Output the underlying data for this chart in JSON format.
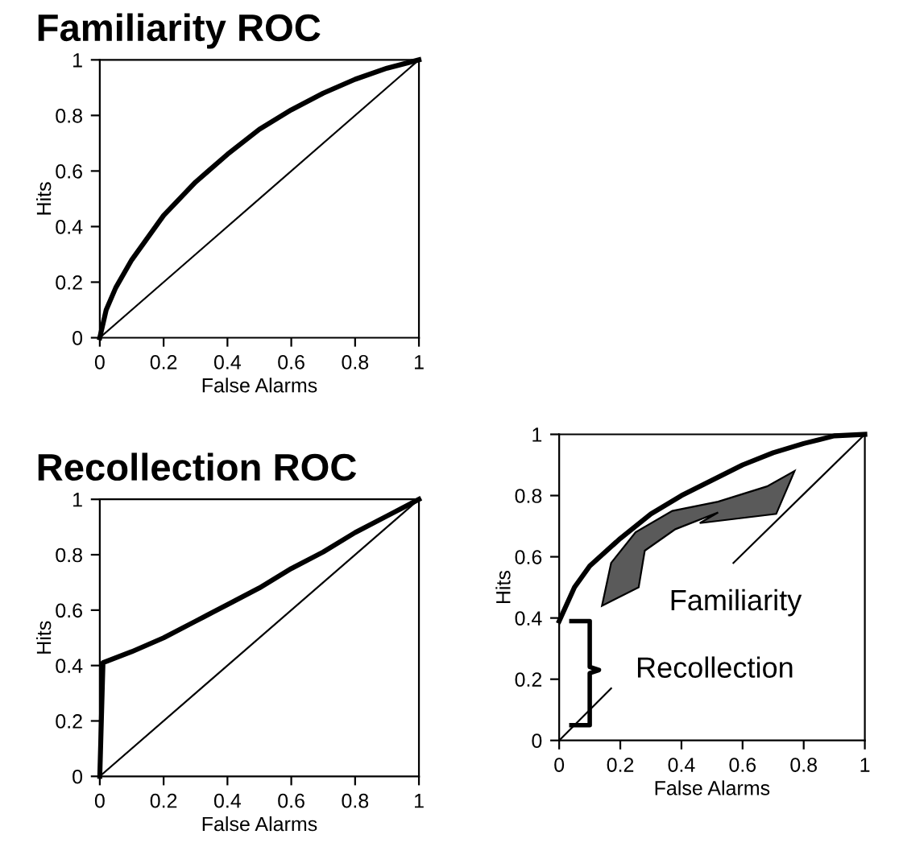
{
  "chart_data": [
    {
      "type": "line",
      "title": "Familiarity ROC",
      "xlabel": "False Alarms",
      "ylabel": "Hits",
      "xlim": [
        0,
        1
      ],
      "ylim": [
        0,
        1
      ],
      "xticks": [
        0,
        0.2,
        0.4,
        0.6,
        0.8,
        1
      ],
      "yticks": [
        0,
        0.2,
        0.4,
        0.6,
        0.8,
        1
      ],
      "grid": false,
      "legend": false,
      "marker": "none",
      "line_style": "solid",
      "series": [
        {
          "color": "#000000",
          "x": [
            0,
            0.02,
            0.05,
            0.1,
            0.2,
            0.3,
            0.4,
            0.5,
            0.6,
            0.7,
            0.8,
            0.9,
            1
          ],
          "values": [
            0,
            0.1,
            0.18,
            0.28,
            0.44,
            0.56,
            0.66,
            0.75,
            0.82,
            0.88,
            0.93,
            0.97,
            1
          ]
        },
        {
          "color": "#000000",
          "x": [
            0,
            1
          ],
          "values": [
            0,
            1
          ]
        }
      ]
    },
    {
      "type": "line",
      "title": "Recollection ROC",
      "xlabel": "False Alarms",
      "ylabel": "Hits",
      "xlim": [
        0,
        1
      ],
      "ylim": [
        0,
        1
      ],
      "xticks": [
        0,
        0.2,
        0.4,
        0.6,
        0.8,
        1
      ],
      "yticks": [
        0,
        0.2,
        0.4,
        0.6,
        0.8,
        1
      ],
      "grid": false,
      "legend": false,
      "marker": "none",
      "line_style": "solid",
      "series": [
        {
          "color": "#000000",
          "x": [
            0,
            0.01,
            0.1,
            0.2,
            0.3,
            0.4,
            0.5,
            0.6,
            0.7,
            0.8,
            0.9,
            1
          ],
          "values": [
            0,
            0.41,
            0.45,
            0.5,
            0.56,
            0.62,
            0.68,
            0.75,
            0.81,
            0.88,
            0.94,
            1
          ]
        },
        {
          "color": "#000000",
          "x": [
            0,
            1
          ],
          "values": [
            0,
            1
          ]
        }
      ]
    },
    {
      "type": "line",
      "xlabel": "False Alarms",
      "ylabel": "Hits",
      "xlim": [
        0,
        1
      ],
      "ylim": [
        0,
        1
      ],
      "xticks": [
        0,
        0.2,
        0.4,
        0.6,
        0.8,
        1
      ],
      "yticks": [
        0,
        0.2,
        0.4,
        0.6,
        0.8,
        1
      ],
      "grid": false,
      "legend": false,
      "marker": "none",
      "line_style": "solid",
      "annotations": [
        "Familiarity",
        "Recollection"
      ],
      "series": [
        {
          "color": "#000000",
          "x": [
            0,
            0.05,
            0.1,
            0.2,
            0.3,
            0.4,
            0.5,
            0.6,
            0.7,
            0.8,
            0.9,
            1
          ],
          "values": [
            0.39,
            0.5,
            0.57,
            0.66,
            0.74,
            0.8,
            0.85,
            0.9,
            0.94,
            0.97,
            0.995,
            1
          ]
        },
        {
          "color": "#000000",
          "x": [
            0,
            0.17,
            0.4,
            0.57,
            1
          ],
          "values": [
            0,
            0.17,
            null,
            0.58,
            1
          ]
        }
      ]
    }
  ]
}
